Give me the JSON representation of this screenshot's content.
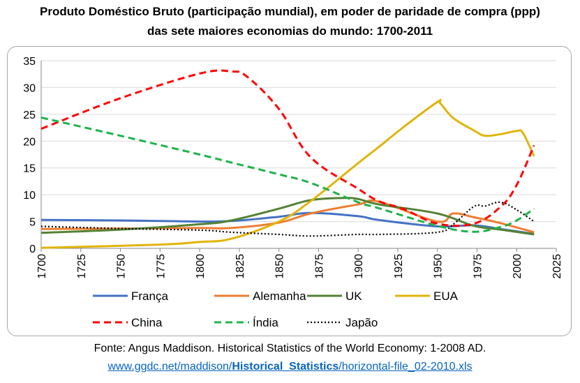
{
  "title_line1": "Produto Doméstico Bruto (participação mundial), em poder de paridade de compra (ppp)",
  "title_line2": "das sete maiores economias do mundo: 1700-2011",
  "source_line": "Fonte: Angus Maddison. Historical Statistics of the World Economy:  1-2008 AD.",
  "source_url": {
    "part1": "www.ggdc.net/maddison/",
    "part2": "Historical_Statistics",
    "part3": "/horizontal-file_02-2010.xls"
  },
  "chart_data": {
    "type": "line",
    "xlim": [
      1700,
      2025
    ],
    "ylim": [
      0,
      35
    ],
    "xticks": [
      1700,
      1725,
      1750,
      1775,
      1800,
      1825,
      1850,
      1875,
      1900,
      1925,
      1950,
      1975,
      2000,
      2025
    ],
    "yticks": [
      0,
      5,
      10,
      15,
      20,
      25,
      30,
      35
    ],
    "legend_position": "bottom",
    "grid": "horizontal",
    "series": [
      {
        "name": "França",
        "color": "#4472c4",
        "dash": "solid",
        "x": [
          1700,
          1750,
          1800,
          1820,
          1850,
          1870,
          1900,
          1913,
          1950,
          1973,
          1990,
          2011
        ],
        "y": [
          5.3,
          5.2,
          5.0,
          5.1,
          5.9,
          6.6,
          6.0,
          5.3,
          4.1,
          4.3,
          3.6,
          2.7
        ]
      },
      {
        "name": "Alemanha",
        "color": "#ed7d31",
        "dash": "solid",
        "x": [
          1700,
          1750,
          1800,
          1820,
          1850,
          1870,
          1900,
          1913,
          1950,
          1960,
          1973,
          1990,
          2011
        ],
        "y": [
          3.6,
          3.7,
          3.8,
          3.8,
          4.8,
          6.5,
          8.2,
          8.7,
          5.0,
          6.5,
          5.8,
          4.7,
          3.0
        ]
      },
      {
        "name": "UK",
        "color": "#548235",
        "dash": "solid",
        "x": [
          1700,
          1750,
          1800,
          1820,
          1850,
          1870,
          1890,
          1900,
          1913,
          1950,
          1973,
          1990,
          2011
        ],
        "y": [
          2.9,
          3.5,
          4.5,
          5.2,
          7.4,
          9.0,
          9.4,
          9.2,
          8.2,
          6.5,
          4.2,
          3.5,
          2.6
        ]
      },
      {
        "name": "EUA",
        "color": "#e1b40b",
        "dash": "solid",
        "x": [
          1700,
          1775,
          1800,
          1820,
          1850,
          1870,
          1900,
          1913,
          1929,
          1950,
          1952,
          1960,
          1973,
          1980,
          1990,
          2000,
          2004,
          2011
        ],
        "y": [
          0.1,
          0.7,
          1.2,
          1.8,
          5.0,
          8.8,
          15.9,
          18.9,
          22.7,
          27.3,
          27.0,
          24.3,
          22.0,
          21.0,
          21.3,
          21.9,
          21.5,
          17.2
        ]
      },
      {
        "name": "China",
        "color": "#ff0000",
        "dash": "dashed",
        "x": [
          1700,
          1750,
          1800,
          1820,
          1830,
          1850,
          1870,
          1900,
          1913,
          1929,
          1950,
          1973,
          1990,
          2000,
          2011
        ],
        "y": [
          22.3,
          28.0,
          32.6,
          33.0,
          32.0,
          26.0,
          17.0,
          11.1,
          8.8,
          7.3,
          4.6,
          4.6,
          7.8,
          11.8,
          19.2
        ]
      },
      {
        "name": "Índia",
        "color": "#1fb34b",
        "dash": "dashed",
        "x": [
          1700,
          1750,
          1800,
          1820,
          1850,
          1870,
          1900,
          1913,
          1950,
          1973,
          1990,
          2000,
          2011
        ],
        "y": [
          24.4,
          21.0,
          17.5,
          16.0,
          13.8,
          12.2,
          8.6,
          7.5,
          4.2,
          3.1,
          4.0,
          5.2,
          7.4
        ]
      },
      {
        "name": "Japão",
        "color": "#000000",
        "dash": "dotted",
        "x": [
          1700,
          1750,
          1800,
          1820,
          1850,
          1870,
          1900,
          1913,
          1950,
          1960,
          1973,
          1980,
          1990,
          2000,
          2011
        ],
        "y": [
          4.1,
          3.7,
          3.4,
          3.0,
          2.6,
          2.3,
          2.6,
          2.6,
          3.0,
          4.5,
          7.8,
          7.9,
          8.6,
          7.2,
          5.0
        ]
      }
    ]
  }
}
